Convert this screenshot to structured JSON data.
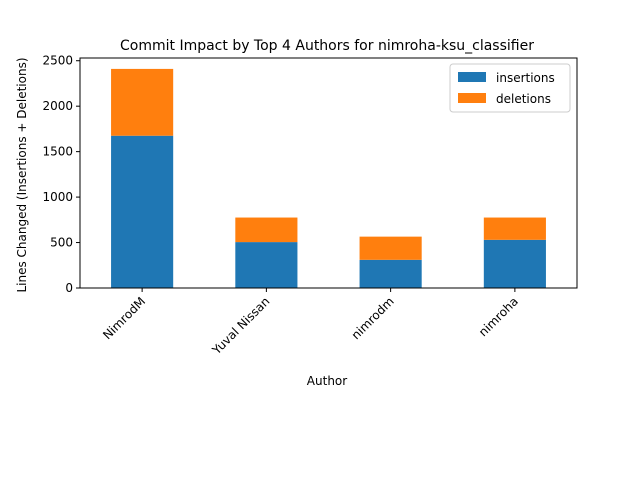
{
  "chart_data": {
    "type": "bar",
    "stacked": true,
    "title": "Commit Impact by Top 4 Authors for nimroha-ksu_classifier",
    "xlabel": "Author",
    "ylabel": "Lines Changed (Insertions + Deletions)",
    "categories": [
      "NimrodM",
      "Yuval Nissan",
      "nimrodm",
      "nimroha"
    ],
    "series": [
      {
        "name": "insertions",
        "color": "#1f77b4",
        "values": [
          1675,
          505,
          310,
          530
        ]
      },
      {
        "name": "deletions",
        "color": "#ff7f0e",
        "values": [
          735,
          270,
          255,
          245
        ]
      }
    ],
    "ylim": [
      0,
      2530
    ],
    "yticks": [
      0,
      500,
      1000,
      1500,
      2000,
      2500
    ],
    "grid": false,
    "legend_position": "top-right"
  }
}
